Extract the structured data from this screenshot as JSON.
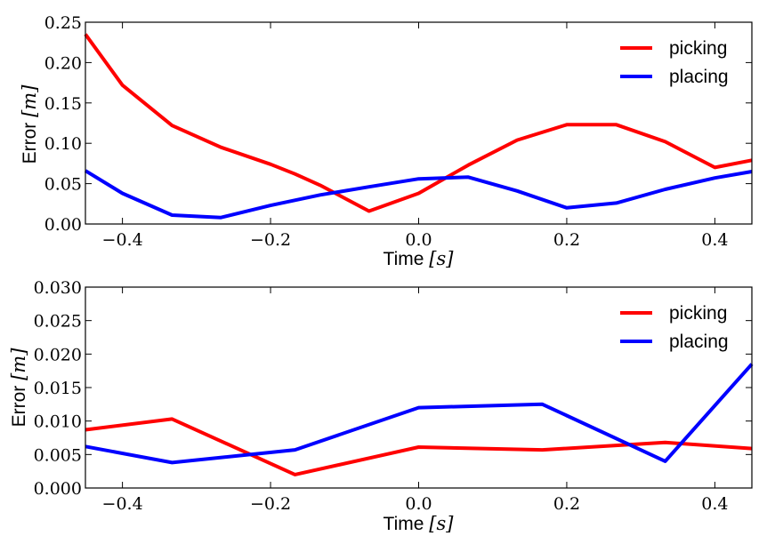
{
  "chart_data": [
    {
      "type": "line",
      "xlabel": "Time",
      "xlabel_unit": "[s]",
      "ylabel": "Error",
      "ylabel_unit": "[m]",
      "xlim": [
        -0.45,
        0.45
      ],
      "ylim": [
        0.0,
        0.25
      ],
      "xticks": [
        -0.4,
        -0.2,
        0.0,
        0.2,
        0.4
      ],
      "xtick_labels": [
        "−0.4",
        "−0.2",
        "0.0",
        "0.2",
        "0.4"
      ],
      "yticks": [
        0.0,
        0.05,
        0.1,
        0.15,
        0.2,
        0.25
      ],
      "ytick_labels": [
        "0.00",
        "0.05",
        "0.10",
        "0.15",
        "0.20",
        "0.25"
      ],
      "legend_position": "top-right",
      "grid": false,
      "series": [
        {
          "name": "picking",
          "color": "#ff0000",
          "x": [
            -0.45,
            -0.4,
            -0.333,
            -0.267,
            -0.2,
            -0.167,
            -0.133,
            -0.067,
            0.0,
            0.067,
            0.133,
            0.2,
            0.267,
            0.333,
            0.4,
            0.45
          ],
          "y": [
            0.235,
            0.172,
            0.122,
            0.095,
            0.074,
            0.062,
            0.048,
            0.016,
            0.038,
            0.073,
            0.104,
            0.123,
            0.123,
            0.102,
            0.07,
            0.079
          ]
        },
        {
          "name": "placing",
          "color": "#0000ff",
          "x": [
            -0.45,
            -0.4,
            -0.333,
            -0.267,
            -0.2,
            -0.133,
            -0.067,
            0.0,
            0.067,
            0.133,
            0.2,
            0.267,
            0.333,
            0.4,
            0.45
          ],
          "y": [
            0.066,
            0.038,
            0.011,
            0.008,
            0.023,
            0.036,
            0.046,
            0.056,
            0.058,
            0.041,
            0.02,
            0.026,
            0.043,
            0.057,
            0.065
          ]
        }
      ]
    },
    {
      "type": "line",
      "xlabel": "Time",
      "xlabel_unit": "[s]",
      "ylabel": "Error",
      "ylabel_unit": "[m]",
      "xlim": [
        -0.45,
        0.45
      ],
      "ylim": [
        0.0,
        0.03
      ],
      "xticks": [
        -0.4,
        -0.2,
        0.0,
        0.2,
        0.4
      ],
      "xtick_labels": [
        "−0.4",
        "−0.2",
        "0.0",
        "0.2",
        "0.4"
      ],
      "yticks": [
        0.0,
        0.005,
        0.01,
        0.015,
        0.02,
        0.025,
        0.03
      ],
      "ytick_labels": [
        "0.000",
        "0.005",
        "0.010",
        "0.015",
        "0.020",
        "0.025",
        "0.030"
      ],
      "legend_position": "top-right",
      "grid": false,
      "series": [
        {
          "name": "picking",
          "color": "#ff0000",
          "x": [
            -0.45,
            -0.333,
            -0.167,
            0.0,
            0.167,
            0.333,
            0.45
          ],
          "y": [
            0.0087,
            0.0103,
            0.002,
            0.0061,
            0.0057,
            0.0068,
            0.0059
          ]
        },
        {
          "name": "placing",
          "color": "#0000ff",
          "x": [
            -0.45,
            -0.333,
            -0.167,
            0.0,
            0.167,
            0.333,
            0.45
          ],
          "y": [
            0.0062,
            0.0038,
            0.0057,
            0.012,
            0.0125,
            0.004,
            0.0185
          ]
        }
      ]
    }
  ]
}
